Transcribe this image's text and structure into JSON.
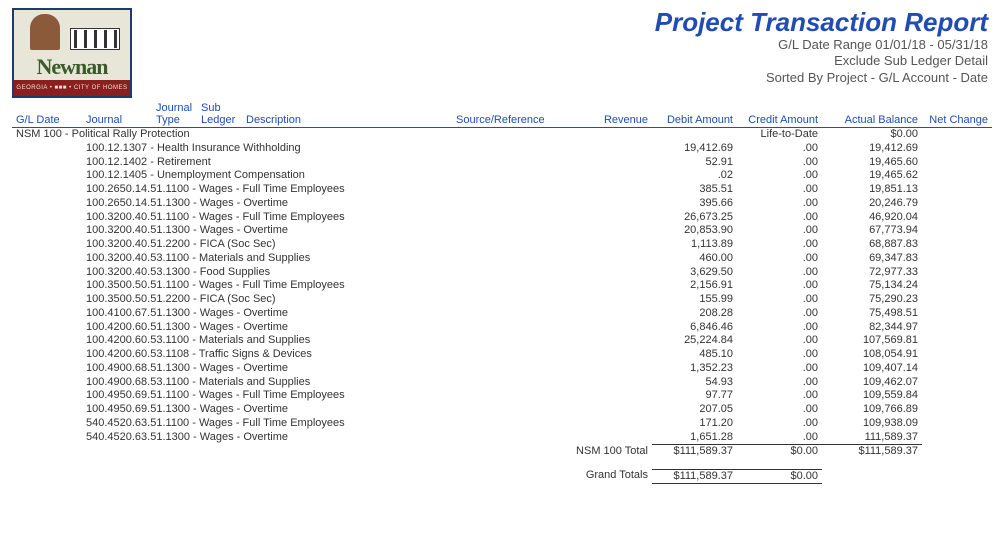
{
  "logo": {
    "word": "Newnan",
    "bar_text": "GEORGIA • ■■■ • CITY OF HOMES"
  },
  "header": {
    "title": "Project Transaction Report",
    "date_range": "G/L Date Range 01/01/18 - 05/31/18",
    "exclude": "Exclude Sub Ledger Detail",
    "sorted": "Sorted By Project - G/L Account - Date"
  },
  "columns": {
    "gldate": "G/L Date",
    "journal": "Journal",
    "jtype_line1": "Journal",
    "jtype_line2": "Type",
    "sub_line1": "Sub",
    "sub_line2": "Ledger",
    "desc": "Description",
    "source": "Source/Reference",
    "revenue": "Revenue",
    "debit": "Debit Amount",
    "credit": "Credit Amount",
    "balance": "Actual Balance",
    "net": "Net Change"
  },
  "section": {
    "name": "NSM 100 - Political Rally Protection",
    "life_to_date_label": "Life-to-Date",
    "life_to_date_balance": "$0.00"
  },
  "rows": [
    {
      "acct": "100.12.1307 - Health Insurance Withholding",
      "debit": "19,412.69",
      "credit": ".00",
      "balance": "19,412.69"
    },
    {
      "acct": "100.12.1402 - Retirement",
      "debit": "52.91",
      "credit": ".00",
      "balance": "19,465.60"
    },
    {
      "acct": "100.12.1405 - Unemployment Compensation",
      "debit": ".02",
      "credit": ".00",
      "balance": "19,465.62"
    },
    {
      "acct": "100.2650.14.51.1100 - Wages - Full Time Employees",
      "debit": "385.51",
      "credit": ".00",
      "balance": "19,851.13"
    },
    {
      "acct": "100.2650.14.51.1300 - Wages - Overtime",
      "debit": "395.66",
      "credit": ".00",
      "balance": "20,246.79"
    },
    {
      "acct": "100.3200.40.51.1100 - Wages - Full Time Employees",
      "debit": "26,673.25",
      "credit": ".00",
      "balance": "46,920.04"
    },
    {
      "acct": "100.3200.40.51.1300 - Wages - Overtime",
      "debit": "20,853.90",
      "credit": ".00",
      "balance": "67,773.94"
    },
    {
      "acct": "100.3200.40.51.2200 - FICA (Soc Sec)",
      "debit": "1,113.89",
      "credit": ".00",
      "balance": "68,887.83"
    },
    {
      "acct": "100.3200.40.53.1100 - Materials and Supplies",
      "debit": "460.00",
      "credit": ".00",
      "balance": "69,347.83"
    },
    {
      "acct": "100.3200.40.53.1300 - Food Supplies",
      "debit": "3,629.50",
      "credit": ".00",
      "balance": "72,977.33"
    },
    {
      "acct": "100.3500.50.51.1100 - Wages - Full Time Employees",
      "debit": "2,156.91",
      "credit": ".00",
      "balance": "75,134.24"
    },
    {
      "acct": "100.3500.50.51.2200 - FICA (Soc Sec)",
      "debit": "155.99",
      "credit": ".00",
      "balance": "75,290.23"
    },
    {
      "acct": "100.4100.67.51.1300 - Wages - Overtime",
      "debit": "208.28",
      "credit": ".00",
      "balance": "75,498.51"
    },
    {
      "acct": "100.4200.60.51.1300 - Wages - Overtime",
      "debit": "6,846.46",
      "credit": ".00",
      "balance": "82,344.97"
    },
    {
      "acct": "100.4200.60.53.1100 - Materials and Supplies",
      "debit": "25,224.84",
      "credit": ".00",
      "balance": "107,569.81"
    },
    {
      "acct": "100.4200.60.53.1108 - Traffic Signs & Devices",
      "debit": "485.10",
      "credit": ".00",
      "balance": "108,054.91"
    },
    {
      "acct": "100.4900.68.51.1300 - Wages - Overtime",
      "debit": "1,352.23",
      "credit": ".00",
      "balance": "109,407.14"
    },
    {
      "acct": "100.4900.68.53.1100 - Materials and Supplies",
      "debit": "54.93",
      "credit": ".00",
      "balance": "109,462.07"
    },
    {
      "acct": "100.4950.69.51.1100 - Wages - Full Time Employees",
      "debit": "97.77",
      "credit": ".00",
      "balance": "109,559.84"
    },
    {
      "acct": "100.4950.69.51.1300 - Wages - Overtime",
      "debit": "207.05",
      "credit": ".00",
      "balance": "109,766.89"
    },
    {
      "acct": "540.4520.63.51.1100 - Wages - Full Time Employees",
      "debit": "171.20",
      "credit": ".00",
      "balance": "109,938.09"
    },
    {
      "acct": "540.4520.63.51.1300 - Wages - Overtime",
      "debit": "1,651.28",
      "credit": ".00",
      "balance": "111,589.37"
    }
  ],
  "section_total": {
    "label": "NSM 100 Total",
    "debit": "$111,589.37",
    "credit": "$0.00",
    "balance": "$111,589.37"
  },
  "grand_total": {
    "label": "Grand Totals",
    "debit": "$111,589.37",
    "credit": "$0.00"
  }
}
